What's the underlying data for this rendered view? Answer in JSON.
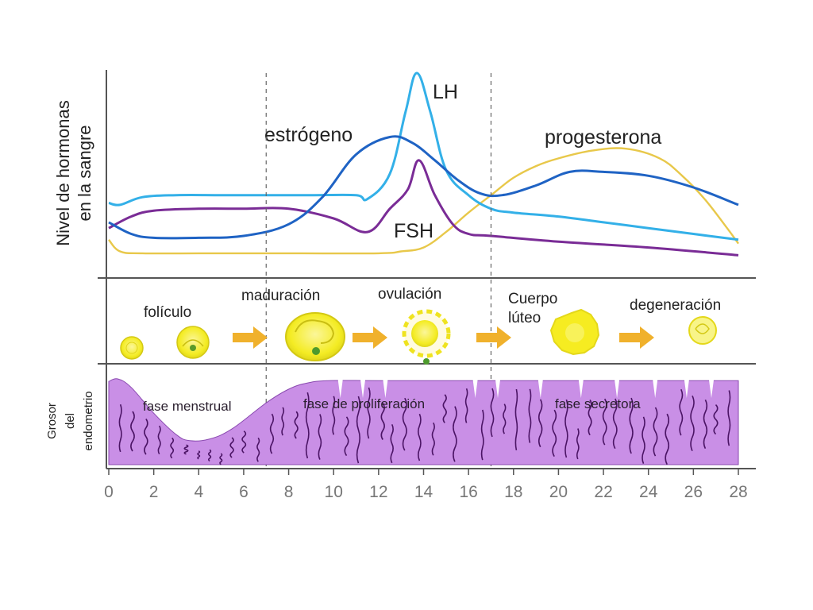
{
  "chart_data": {
    "type": "line",
    "ylabel": "Nivel de hormonas en la sangre",
    "ylabel_lines": [
      "Nivel de hormonas",
      "en la sangre"
    ],
    "xlim": [
      0,
      28
    ],
    "x_ticks": [
      "0",
      "2",
      "4",
      "6",
      "8",
      "10",
      "12",
      "14",
      "16",
      "18",
      "20",
      "22",
      "24",
      "26",
      "28"
    ],
    "phase_dividers_day": [
      7,
      17
    ],
    "colors": {
      "estrogeno": "#1f63c4",
      "LH": "#33b0e8",
      "FSH": "#7a2c96",
      "progesterona": "#e8c84a",
      "endometrio": "#c98fe6",
      "endometrio_veins": "#4b1465",
      "ovario": "#f7ee2a",
      "flecha": "#f0b12c"
    },
    "series": [
      {
        "name": "estrógeno",
        "key": "estrogeno",
        "x": [
          0,
          1,
          2,
          4,
          6,
          8,
          9.5,
          11,
          12.5,
          13.5,
          14.5,
          15.5,
          16.5,
          17.5,
          19,
          20.5,
          22,
          24,
          26,
          28
        ],
        "y": [
          0.23,
          0.17,
          0.15,
          0.15,
          0.16,
          0.22,
          0.36,
          0.58,
          0.67,
          0.64,
          0.55,
          0.45,
          0.38,
          0.37,
          0.42,
          0.49,
          0.49,
          0.47,
          0.41,
          0.32
        ]
      },
      {
        "name": "LH",
        "key": "LH",
        "x": [
          0,
          0.5,
          1.5,
          3,
          5,
          7,
          9,
          11,
          11.5,
          12.5,
          13.2,
          13.7,
          14.3,
          15,
          16,
          17,
          18,
          20,
          22,
          24,
          26,
          28
        ],
        "y": [
          0.33,
          0.32,
          0.36,
          0.37,
          0.37,
          0.37,
          0.37,
          0.37,
          0.35,
          0.48,
          0.8,
          1.0,
          0.8,
          0.5,
          0.37,
          0.3,
          0.28,
          0.26,
          0.23,
          0.2,
          0.17,
          0.14
        ]
      },
      {
        "name": "FSH",
        "key": "FSH",
        "x": [
          0,
          1,
          2,
          4,
          6,
          8,
          10,
          11.5,
          12.5,
          13.3,
          13.8,
          14.5,
          15.3,
          16,
          17,
          20,
          24,
          28
        ],
        "y": [
          0.2,
          0.26,
          0.29,
          0.3,
          0.3,
          0.3,
          0.25,
          0.18,
          0.3,
          0.4,
          0.55,
          0.37,
          0.22,
          0.17,
          0.16,
          0.13,
          0.1,
          0.06
        ]
      },
      {
        "name": "progesterona",
        "key": "progesterona",
        "x": [
          0,
          0.5,
          1.5,
          4,
          8,
          12,
          13,
          14,
          15,
          16,
          17,
          18,
          19,
          20,
          21.5,
          23,
          24.5,
          25.5,
          26.5,
          27.5,
          28
        ],
        "y": [
          0.14,
          0.08,
          0.07,
          0.07,
          0.07,
          0.07,
          0.08,
          0.1,
          0.18,
          0.28,
          0.37,
          0.46,
          0.52,
          0.56,
          0.6,
          0.61,
          0.56,
          0.47,
          0.35,
          0.2,
          0.12
        ]
      }
    ],
    "curve_labels": [
      {
        "key": "estrogeno",
        "text": "estrógeno"
      },
      {
        "key": "LH",
        "text": "LH"
      },
      {
        "key": "FSH",
        "text": "FSH"
      },
      {
        "key": "progesterona",
        "text": "progesterona"
      }
    ],
    "ovary_stage_labels": [
      "folículo",
      "maduración",
      "ovulación",
      "Cuerpo lúteo",
      "degeneración"
    ],
    "endometrium_ylabel_lines": [
      "Grosor",
      "del",
      "endometrio"
    ],
    "endometrium_phase_labels": [
      "fase menstrual",
      "fase de proliferación",
      "fase secretora"
    ],
    "endometrium_thickness": {
      "x": [
        0,
        0.4,
        1,
        2,
        3,
        3.6,
        4.5,
        5.5,
        7,
        8,
        8.8,
        9.8,
        12,
        16,
        28
      ],
      "y": [
        0.97,
        1.0,
        0.9,
        0.6,
        0.35,
        0.28,
        0.3,
        0.42,
        0.72,
        0.88,
        0.95,
        0.98,
        0.98,
        0.98,
        0.98
      ]
    }
  }
}
